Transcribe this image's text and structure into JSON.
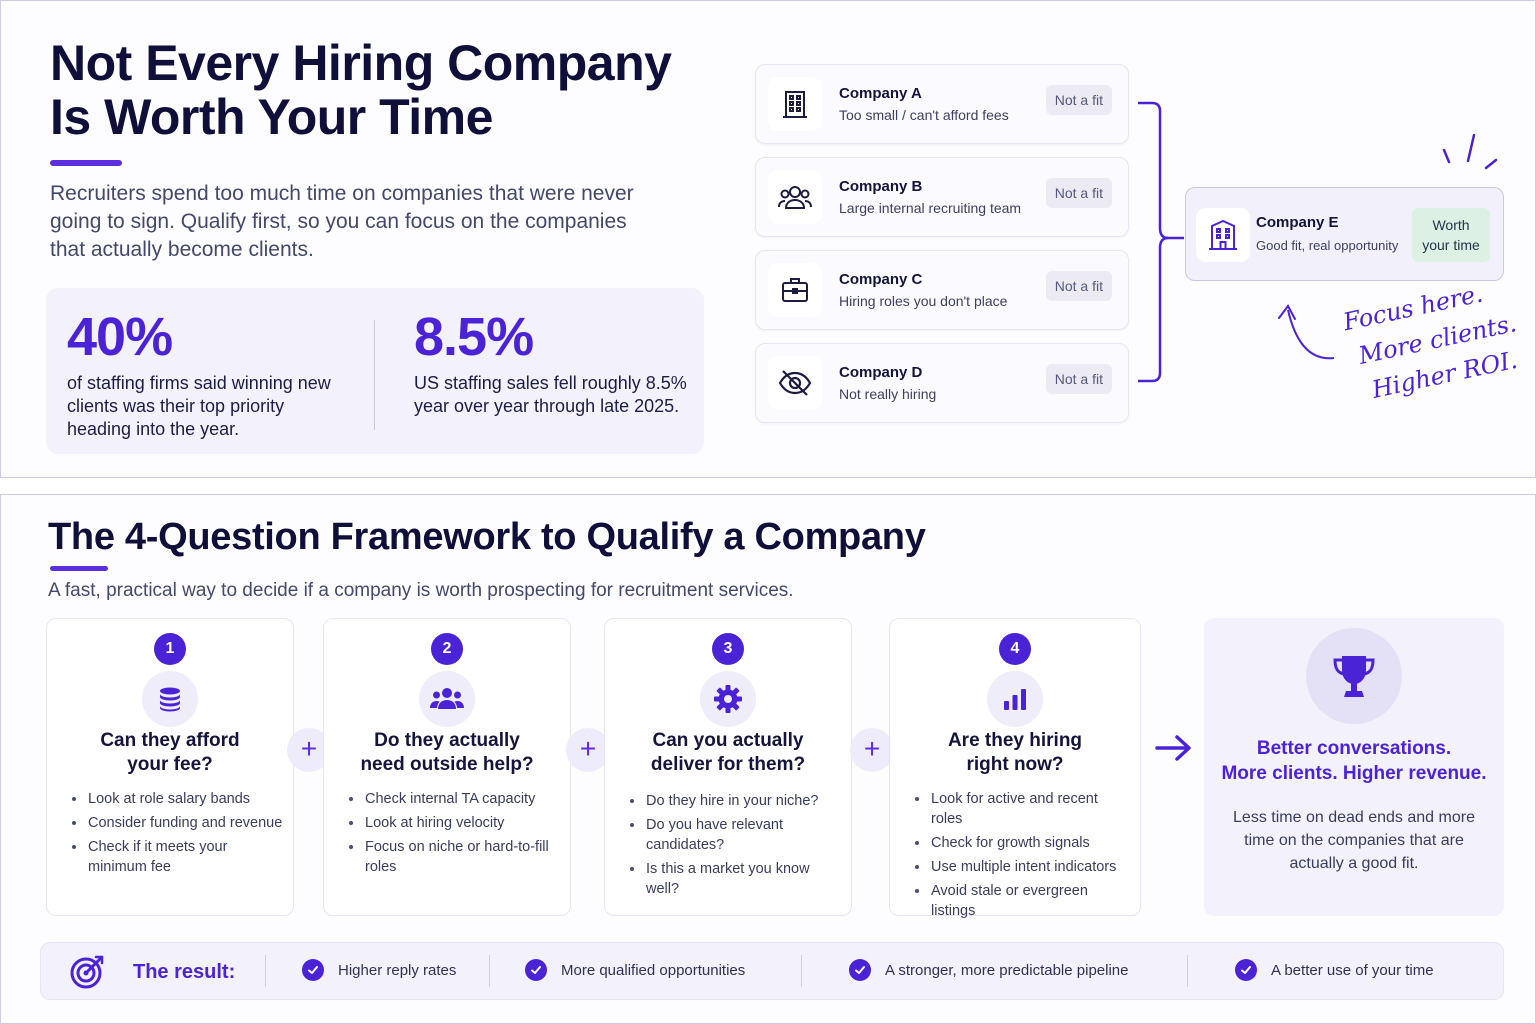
{
  "hero": {
    "title_line1": "Not Every Hiring Company",
    "title_line2": "Is Worth Your Time",
    "intro": "Recruiters spend too much time on companies that were never going to sign. Qualify first, so you can focus on the companies that actually become clients."
  },
  "stats": [
    {
      "value": "40%",
      "text": "of staffing firms said winning new clients was their top priority heading into the year."
    },
    {
      "value": "8.5%",
      "text": "US staffing sales fell roughly 8.5% year over year through late 2025."
    }
  ],
  "companies": [
    {
      "name": "Company A",
      "desc": "Too small / can't afford fees",
      "badge": "Not a fit",
      "icon": "building-icon"
    },
    {
      "name": "Company B",
      "desc": "Large internal recruiting team",
      "badge": "Not a fit",
      "icon": "team-icon"
    },
    {
      "name": "Company C",
      "desc": "Hiring roles you don't place",
      "badge": "Not a fit",
      "icon": "briefcase-icon"
    },
    {
      "name": "Company D",
      "desc": "Not really hiring",
      "badge": "Not a fit",
      "icon": "eye-off-icon"
    }
  ],
  "company_e": {
    "name": "Company E",
    "desc": "Good fit, real opportunity",
    "badge_line1": "Worth",
    "badge_line2": "your time",
    "icon": "office-building-icon"
  },
  "handwritten": [
    "Focus here.",
    "More clients.",
    "Higher ROI."
  ],
  "framework": {
    "title": "The 4-Question Framework to Qualify a Company",
    "subtitle": "A fast, practical way to decide if a company is worth prospecting for recruitment services.",
    "questions": [
      {
        "number": "1",
        "icon": "coins-icon",
        "title_line1": "Can they afford",
        "title_line2": "your fee?",
        "bullets": [
          "Look at role salary bands",
          "Consider funding and revenue",
          "Check if it meets your minimum fee"
        ]
      },
      {
        "number": "2",
        "icon": "people-icon",
        "title_line1": "Do they actually",
        "title_line2": "need outside help?",
        "bullets": [
          "Check internal TA capacity",
          "Look at hiring velocity",
          "Focus on niche or hard-to-fill roles"
        ]
      },
      {
        "number": "3",
        "icon": "gear-icon",
        "title_line1": "Can you actually",
        "title_line2": "deliver for them?",
        "bullets": [
          "Do they hire in your niche?",
          "Do you have relevant candidates?",
          "Is this a market you know well?"
        ]
      },
      {
        "number": "4",
        "icon": "bar-chart-icon",
        "title_line1": "Are they hiring",
        "title_line2": "right now?",
        "bullets": [
          "Look for active and recent roles",
          "Check for growth signals",
          "Use multiple intent indicators",
          "Avoid stale or evergreen listings"
        ]
      }
    ],
    "plus_symbol": "+",
    "outcome": {
      "icon": "trophy-icon",
      "title_line1": "Better conversations.",
      "title_line2": "More clients. Higher revenue.",
      "text": "Less time on dead ends and more time on the companies that are actually a good fit."
    }
  },
  "result": {
    "label": "The result:",
    "items": [
      "Higher reply rates",
      "More qualified opportunities",
      "A stronger, more predictable pipeline",
      "A better use of your time"
    ]
  },
  "colors": {
    "accent": "#4b23d6",
    "accent_light": "#f3f1fb",
    "success_bg": "#dcf1e3",
    "text": "#0f0f3a"
  }
}
